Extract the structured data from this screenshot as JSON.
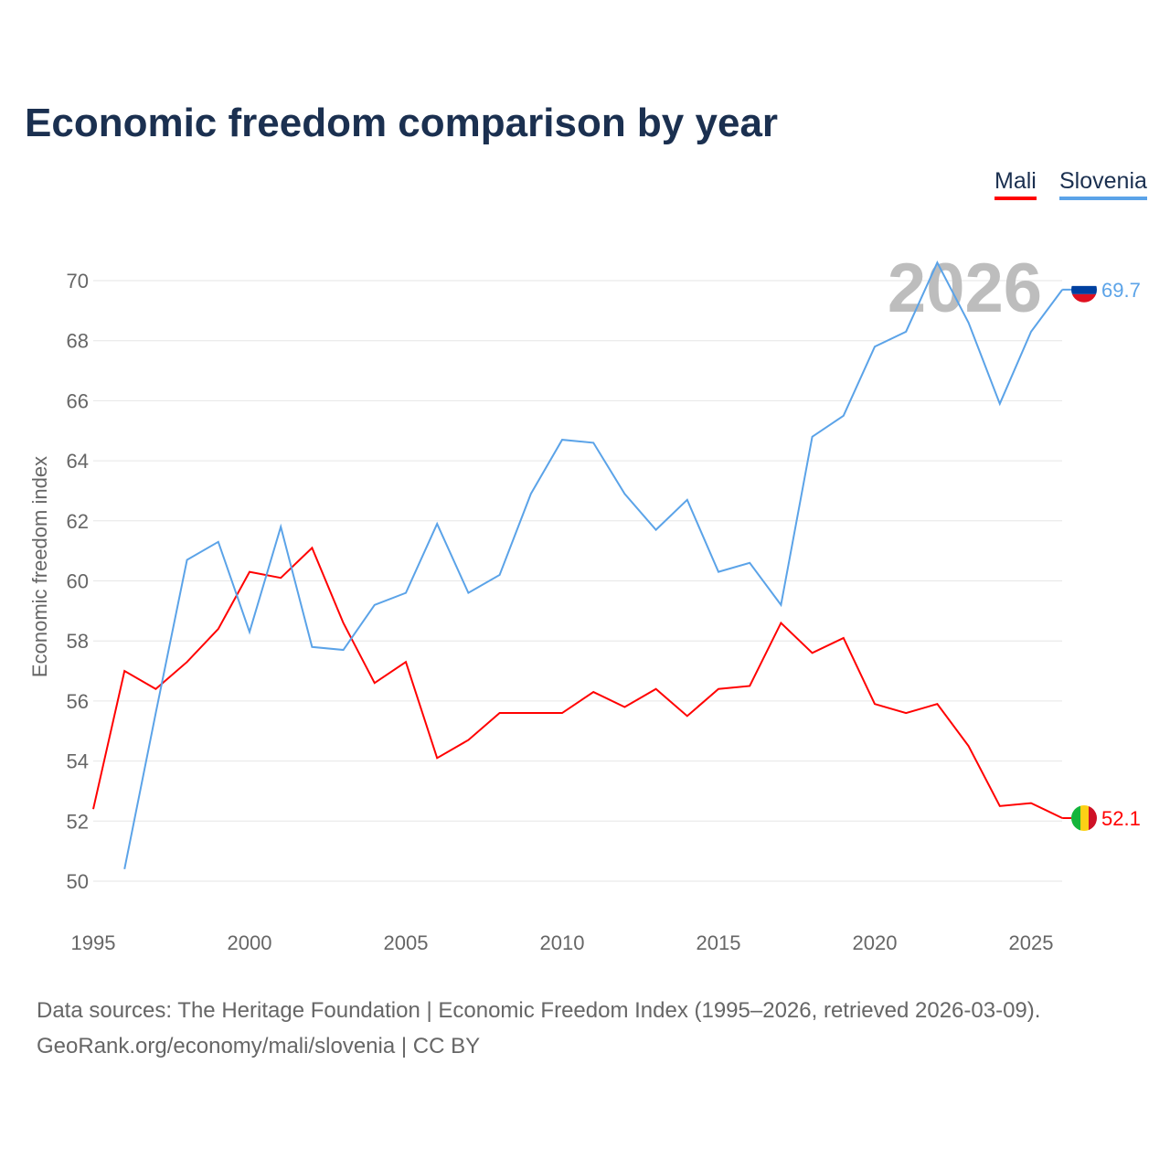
{
  "chart_data": {
    "type": "line",
    "title": "Economic freedom comparison by year",
    "xlabel": "",
    "ylabel": "Economic freedom index",
    "xlim": [
      1995,
      2026
    ],
    "ylim": [
      50,
      70
    ],
    "yticks": [
      50,
      52,
      54,
      56,
      58,
      60,
      62,
      64,
      66,
      68,
      70
    ],
    "xticks": [
      1995,
      2000,
      2005,
      2010,
      2015,
      2020,
      2025
    ],
    "watermark_year": "2026",
    "legend": "top-right",
    "series": [
      {
        "name": "Mali",
        "color": "#ff0000",
        "end_label": "52.1",
        "x": [
          1995,
          1996,
          1997,
          1998,
          1999,
          2000,
          2001,
          2002,
          2003,
          2004,
          2005,
          2006,
          2007,
          2008,
          2009,
          2010,
          2011,
          2012,
          2013,
          2014,
          2015,
          2016,
          2017,
          2018,
          2019,
          2020,
          2021,
          2022,
          2023,
          2024,
          2025,
          2026
        ],
        "values": [
          52.4,
          57.0,
          56.4,
          57.3,
          58.4,
          60.3,
          60.1,
          61.1,
          58.6,
          56.6,
          57.3,
          54.1,
          54.7,
          55.6,
          55.6,
          55.6,
          56.3,
          55.8,
          56.4,
          55.5,
          56.4,
          56.5,
          58.6,
          57.6,
          58.1,
          55.9,
          55.6,
          55.9,
          54.5,
          52.5,
          52.6,
          52.1
        ]
      },
      {
        "name": "Slovenia",
        "color": "#5ba3e8",
        "end_label": "69.7",
        "x": [
          1996,
          1997,
          1998,
          1999,
          2000,
          2001,
          2002,
          2003,
          2004,
          2005,
          2006,
          2007,
          2008,
          2009,
          2010,
          2011,
          2012,
          2013,
          2014,
          2015,
          2016,
          2017,
          2018,
          2019,
          2020,
          2021,
          2022,
          2023,
          2024,
          2025,
          2026
        ],
        "values": [
          50.4,
          55.6,
          60.7,
          61.3,
          58.3,
          61.8,
          57.8,
          57.7,
          59.2,
          59.6,
          61.9,
          59.6,
          60.2,
          62.9,
          64.7,
          64.6,
          62.9,
          61.7,
          62.7,
          60.3,
          60.6,
          59.2,
          64.8,
          65.5,
          67.8,
          68.3,
          70.6,
          68.6,
          65.9,
          68.3,
          69.7
        ]
      }
    ]
  },
  "footer": {
    "line1": "Data sources: The Heritage Foundation | Economic Freedom Index (1995–2026, retrieved 2026-03-09).",
    "line2": "GeoRank.org/economy/mali/slovenia | CC BY"
  }
}
